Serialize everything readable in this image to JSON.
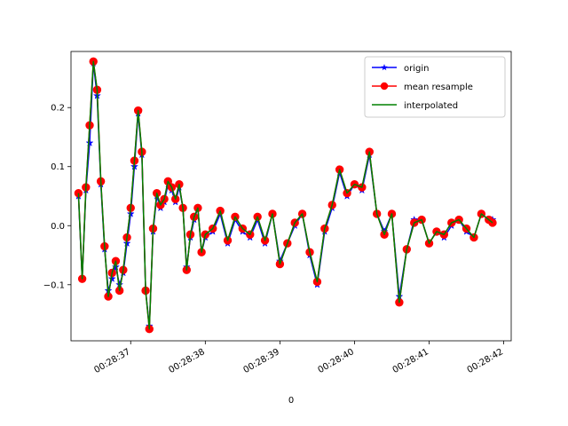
{
  "chart_data": {
    "type": "line",
    "xlabel": "0",
    "ylabel": "",
    "x_tick_labels": [
      "00:28:37",
      "00:28:38",
      "00:28:39",
      "00:28:40",
      "00:28:41",
      "00:28:42"
    ],
    "x_tick_values": [
      37,
      38,
      39,
      40,
      41,
      42
    ],
    "y_tick_labels": [
      "−0.1",
      "0.0",
      "0.1",
      "0.2"
    ],
    "y_tick_values": [
      -0.1,
      0.0,
      0.1,
      0.2
    ],
    "xlim": [
      36.2,
      42.1
    ],
    "ylim": [
      -0.195,
      0.295
    ],
    "legend_position": "top-right",
    "grid": false,
    "series": [
      {
        "name": "origin",
        "color": "#0000ff",
        "marker": "star",
        "x": [
          36.3,
          36.35,
          36.4,
          36.45,
          36.5,
          36.55,
          36.6,
          36.65,
          36.7,
          36.75,
          36.8,
          36.85,
          36.9,
          36.95,
          37.0,
          37.05,
          37.1,
          37.15,
          37.2,
          37.25,
          37.3,
          37.35,
          37.4,
          37.45,
          37.5,
          37.55,
          37.6,
          37.65,
          37.7,
          37.75,
          37.8,
          37.85,
          37.9,
          37.95,
          38.0,
          38.1,
          38.2,
          38.3,
          38.4,
          38.5,
          38.6,
          38.7,
          38.8,
          38.9,
          39.0,
          39.1,
          39.2,
          39.3,
          39.4,
          39.5,
          39.6,
          39.7,
          39.8,
          39.9,
          40.0,
          40.1,
          40.2,
          40.3,
          40.4,
          40.5,
          40.6,
          40.7,
          40.8,
          40.9,
          41.0,
          41.1,
          41.2,
          41.3,
          41.4,
          41.5,
          41.6,
          41.7,
          41.8,
          41.85
        ],
        "y": [
          0.05,
          -0.09,
          0.06,
          0.14,
          0.275,
          0.22,
          0.07,
          -0.04,
          -0.11,
          -0.09,
          -0.07,
          -0.1,
          -0.08,
          -0.03,
          0.02,
          0.1,
          0.19,
          0.12,
          -0.11,
          -0.17,
          -0.01,
          0.05,
          0.03,
          0.04,
          0.07,
          0.06,
          0.04,
          0.065,
          0.03,
          -0.07,
          -0.02,
          0.01,
          0.03,
          -0.045,
          -0.02,
          -0.01,
          0.02,
          -0.03,
          0.01,
          -0.01,
          -0.02,
          0.01,
          -0.03,
          0.02,
          -0.06,
          -0.03,
          0.0,
          0.02,
          -0.05,
          -0.1,
          -0.01,
          0.03,
          0.09,
          0.05,
          0.07,
          0.06,
          0.12,
          0.02,
          -0.01,
          0.02,
          -0.12,
          -0.04,
          0.01,
          0.01,
          -0.03,
          -0.01,
          -0.02,
          0.0,
          0.01,
          -0.01,
          -0.02,
          0.02,
          0.01,
          0.01
        ]
      },
      {
        "name": "mean resample",
        "color": "#ff0000",
        "marker": "circle",
        "x": [
          36.3,
          36.35,
          36.4,
          36.45,
          36.5,
          36.55,
          36.6,
          36.65,
          36.7,
          36.75,
          36.8,
          36.85,
          36.9,
          36.95,
          37.0,
          37.05,
          37.1,
          37.15,
          37.2,
          37.25,
          37.3,
          37.35,
          37.4,
          37.45,
          37.5,
          37.55,
          37.6,
          37.65,
          37.7,
          37.75,
          37.8,
          37.85,
          37.9,
          37.95,
          38.0,
          38.1,
          38.2,
          38.3,
          38.4,
          38.5,
          38.6,
          38.7,
          38.8,
          38.9,
          39.0,
          39.1,
          39.2,
          39.3,
          39.4,
          39.5,
          39.6,
          39.7,
          39.8,
          39.9,
          40.0,
          40.1,
          40.2,
          40.3,
          40.4,
          40.5,
          40.6,
          40.7,
          40.8,
          40.9,
          41.0,
          41.1,
          41.2,
          41.3,
          41.4,
          41.5,
          41.6,
          41.7,
          41.8,
          41.85
        ],
        "y": [
          0.055,
          -0.09,
          0.065,
          0.17,
          0.278,
          0.23,
          0.075,
          -0.035,
          -0.12,
          -0.08,
          -0.06,
          -0.11,
          -0.075,
          -0.02,
          0.03,
          0.11,
          0.195,
          0.125,
          -0.11,
          -0.175,
          -0.005,
          0.055,
          0.035,
          0.045,
          0.075,
          0.065,
          0.045,
          0.07,
          0.03,
          -0.075,
          -0.015,
          0.015,
          0.03,
          -0.045,
          -0.015,
          -0.005,
          0.025,
          -0.025,
          0.015,
          -0.005,
          -0.015,
          0.015,
          -0.025,
          0.02,
          -0.065,
          -0.03,
          0.005,
          0.02,
          -0.045,
          -0.095,
          -0.005,
          0.035,
          0.095,
          0.055,
          0.07,
          0.065,
          0.125,
          0.02,
          -0.015,
          0.02,
          -0.13,
          -0.04,
          0.005,
          0.01,
          -0.03,
          -0.01,
          -0.015,
          0.005,
          0.01,
          -0.005,
          -0.02,
          0.02,
          0.01,
          0.005
        ]
      },
      {
        "name": "interpolated",
        "color": "#008000",
        "marker": "none",
        "x": [
          36.3,
          36.35,
          36.4,
          36.45,
          36.5,
          36.55,
          36.6,
          36.65,
          36.7,
          36.75,
          36.8,
          36.85,
          36.9,
          36.95,
          37.0,
          37.05,
          37.1,
          37.15,
          37.2,
          37.25,
          37.3,
          37.35,
          37.4,
          37.45,
          37.5,
          37.55,
          37.6,
          37.65,
          37.7,
          37.75,
          37.8,
          37.85,
          37.9,
          37.95,
          38.0,
          38.1,
          38.2,
          38.3,
          38.4,
          38.5,
          38.6,
          38.7,
          38.8,
          38.9,
          39.0,
          39.1,
          39.2,
          39.3,
          39.4,
          39.5,
          39.6,
          39.7,
          39.8,
          39.9,
          40.0,
          40.1,
          40.2,
          40.3,
          40.4,
          40.5,
          40.6,
          40.7,
          40.8,
          40.9,
          41.0,
          41.1,
          41.2,
          41.3,
          41.4,
          41.5,
          41.6,
          41.7,
          41.8,
          41.85
        ],
        "y": [
          0.055,
          -0.09,
          0.065,
          0.17,
          0.278,
          0.23,
          0.075,
          -0.035,
          -0.12,
          -0.08,
          -0.06,
          -0.11,
          -0.075,
          -0.02,
          0.03,
          0.11,
          0.195,
          0.125,
          -0.11,
          -0.175,
          -0.005,
          0.055,
          0.035,
          0.045,
          0.075,
          0.065,
          0.045,
          0.07,
          0.03,
          -0.075,
          -0.015,
          0.015,
          0.03,
          -0.045,
          -0.015,
          -0.005,
          0.025,
          -0.025,
          0.015,
          -0.005,
          -0.015,
          0.015,
          -0.025,
          0.02,
          -0.065,
          -0.03,
          0.005,
          0.02,
          -0.045,
          -0.095,
          -0.005,
          0.035,
          0.095,
          0.055,
          0.07,
          0.065,
          0.125,
          0.02,
          -0.015,
          0.02,
          -0.13,
          -0.04,
          0.005,
          0.01,
          -0.03,
          -0.01,
          -0.015,
          0.005,
          0.01,
          -0.005,
          -0.02,
          0.02,
          0.01,
          0.005
        ]
      }
    ]
  }
}
